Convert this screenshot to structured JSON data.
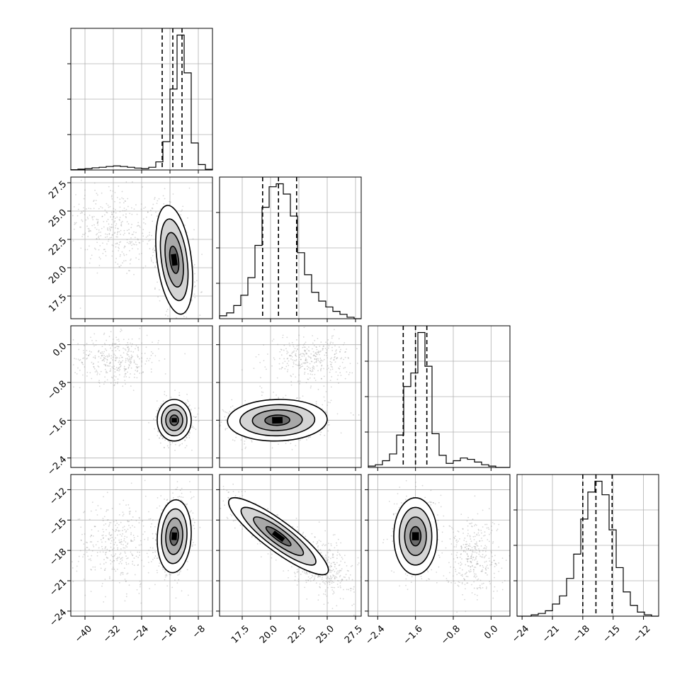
{
  "chart_data": {
    "type": "corner",
    "parameters": [
      {
        "id": "p0",
        "range": [
          -44,
          -4
        ],
        "ticks": [
          -40,
          -32,
          -24,
          -16,
          -8
        ],
        "ticklabels": [
          "−40",
          "−32",
          "−24",
          "−16",
          "−8"
        ],
        "quantiles": [
          -18.2,
          -15.2,
          -12.6
        ],
        "peak": -14.8
      },
      {
        "id": "p1",
        "range": [
          15.5,
          28.0
        ],
        "ticks": [
          17.5,
          20.0,
          22.5,
          25.0,
          27.5
        ],
        "ticklabels": [
          "17.5",
          "20.0",
          "22.5",
          "25.0",
          "27.5"
        ],
        "quantiles": [
          19.3,
          20.7,
          22.3
        ],
        "peak": 20.5
      },
      {
        "id": "p2",
        "range": [
          -2.6,
          0.4
        ],
        "ticks": [
          -2.4,
          -1.6,
          -0.8,
          0.0
        ],
        "ticklabels": [
          "−2.4",
          "−1.6",
          "−0.8",
          "0.0"
        ],
        "quantiles": [
          -1.86,
          -1.6,
          -1.36
        ],
        "peak": -1.58
      },
      {
        "id": "p3",
        "range": [
          -24.5,
          -10.5
        ],
        "ticks": [
          -24,
          -21,
          -18,
          -15,
          -12
        ],
        "ticklabels": [
          "−24",
          "−21",
          "−18",
          "−15",
          "−12"
        ],
        "quantiles": [
          -18.0,
          -16.7,
          -15.1
        ],
        "peak": -16.6
      }
    ],
    "histograms": [
      {
        "param": "p0",
        "bin_edges": [
          -44,
          -42,
          -40,
          -38,
          -36,
          -34,
          -32,
          -30,
          -28,
          -26,
          -24,
          -22,
          -20,
          -18,
          -16,
          -14,
          -12,
          -10,
          -8,
          -6,
          -4
        ],
        "counts": [
          0.2,
          0.6,
          1.0,
          1.6,
          2.0,
          2.6,
          3.0,
          2.6,
          2.0,
          1.4,
          1.0,
          2.0,
          6.0,
          21.0,
          60.0,
          100.0,
          72.0,
          20.0,
          4.0,
          0.5
        ]
      },
      {
        "param": "p1",
        "bin_edges": [
          15.5,
          16.125,
          16.75,
          17.375,
          18.0,
          18.625,
          19.25,
          19.875,
          20.5,
          21.125,
          21.75,
          22.375,
          23.0,
          23.625,
          24.25,
          24.875,
          25.5,
          26.125,
          26.75,
          27.375,
          28.0
        ],
        "counts": [
          2,
          4,
          9,
          16,
          28,
          50,
          76,
          90,
          92,
          85,
          70,
          45,
          30,
          18,
          12,
          8,
          5,
          3,
          1,
          0
        ]
      },
      {
        "param": "p2",
        "bin_edges": [
          -2.6,
          -2.45,
          -2.3,
          -2.15,
          -2.0,
          -1.85,
          -1.7,
          -1.55,
          -1.4,
          -1.25,
          -1.1,
          -0.95,
          -0.8,
          -0.65,
          -0.5,
          -0.35,
          -0.2,
          -0.05,
          0.1,
          0.25,
          0.4
        ],
        "counts": [
          1,
          2,
          5,
          10,
          24,
          60,
          70,
          100,
          75,
          25,
          9,
          3,
          5,
          7,
          6,
          4,
          2,
          1,
          0,
          0
        ]
      },
      {
        "param": "p3",
        "bin_edges": [
          -24.5,
          -23.8,
          -23.1,
          -22.4,
          -21.7,
          -21.0,
          -20.3,
          -19.6,
          -18.9,
          -18.2,
          -17.5,
          -16.8,
          -16.1,
          -15.4,
          -14.7,
          -14.0,
          -13.3,
          -12.6,
          -11.9,
          -11.2,
          -10.5
        ],
        "counts": [
          0,
          0,
          1,
          2,
          4,
          9,
          15,
          28,
          46,
          72,
          92,
          100,
          90,
          64,
          36,
          18,
          8,
          3,
          1,
          0
        ]
      }
    ],
    "pairs": [
      {
        "x": "p0",
        "y": "p1",
        "cx": -14.8,
        "cy": 20.7,
        "sx": 2.6,
        "sy": 2.4,
        "rho": -0.35,
        "tail": {
          "cx": -32,
          "cy": 23.5,
          "sx": 6,
          "sy": 2.0,
          "rho": -0.3
        }
      },
      {
        "x": "p0",
        "y": "p2",
        "cx": -14.8,
        "cy": -1.6,
        "sx": 2.4,
        "sy": 0.22,
        "rho": 0.0,
        "tail": {
          "cx": -31,
          "cy": -0.3,
          "sx": 6,
          "sy": 0.25,
          "rho": 0.0
        }
      },
      {
        "x": "p0",
        "y": "p3",
        "cx": -14.8,
        "cy": -16.6,
        "sx": 2.4,
        "sy": 1.8,
        "rho": 0.1,
        "tail": {
          "cx": -31,
          "cy": -17.5,
          "sx": 6,
          "sy": 2.2,
          "rho": 0.0
        }
      },
      {
        "x": "p1",
        "y": "p2",
        "cx": 20.6,
        "cy": -1.6,
        "sx": 2.2,
        "sy": 0.22,
        "rho": 0.05,
        "tail": {
          "cx": 23.5,
          "cy": -0.3,
          "sx": 1.8,
          "sy": 0.25,
          "rho": 0.0
        }
      },
      {
        "x": "p1",
        "y": "p3",
        "cx": 20.7,
        "cy": -16.6,
        "sx": 2.2,
        "sy": 1.9,
        "rho": -0.88,
        "tail": {
          "cx": 24.5,
          "cy": -19.5,
          "sx": 1.5,
          "sy": 1.5,
          "rho": -0.4
        }
      },
      {
        "x": "p2",
        "y": "p3",
        "cx": -1.6,
        "cy": -16.6,
        "sx": 0.23,
        "sy": 1.9,
        "rho": 0.0,
        "tail": {
          "cx": -0.4,
          "cy": -18.5,
          "sx": 0.3,
          "sy": 2.0,
          "rho": 0.0
        }
      }
    ],
    "contour_levels_sigma": [
      0.5,
      1.0,
      1.5,
      2.0
    ],
    "grid": true,
    "quantile_style": "dashed"
  }
}
